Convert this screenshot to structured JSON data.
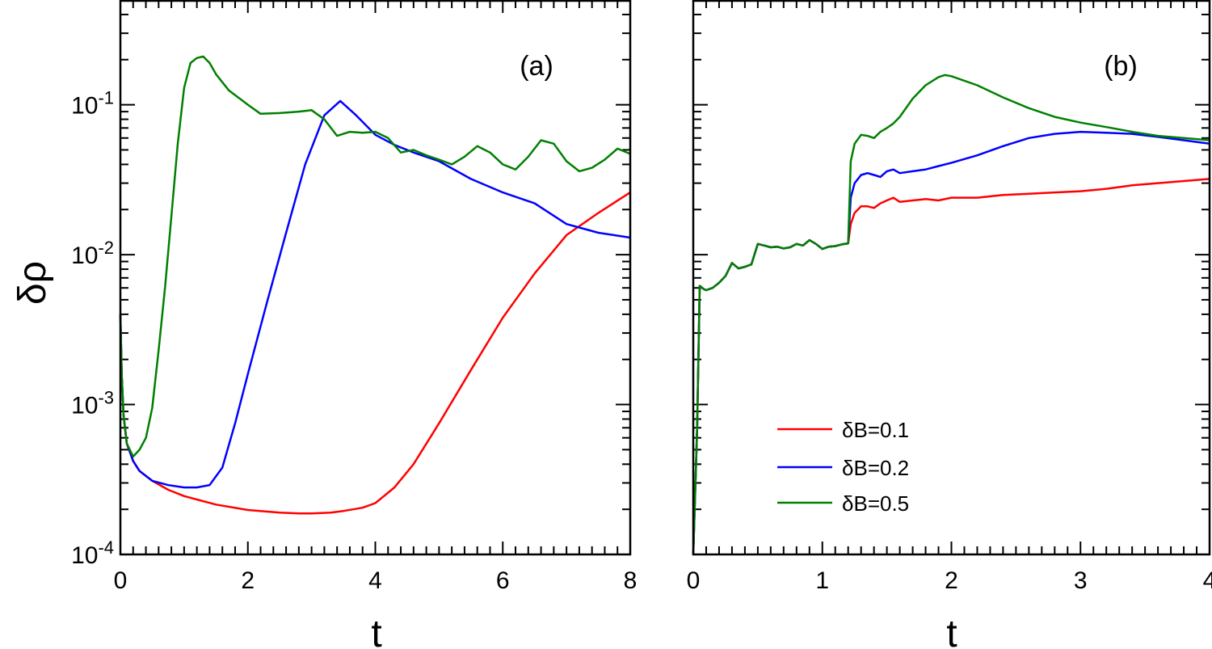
{
  "chart_data": [
    {
      "type": "line",
      "panel_label": "(a)",
      "xlabel": "t",
      "ylabel": "δρ",
      "xlim": [
        0,
        8
      ],
      "ylim": [
        0.0001,
        0.5
      ],
      "yscale": "log",
      "grid": false,
      "x_ticks": [
        0,
        2,
        4,
        6,
        8
      ],
      "y_ticks": [
        {
          "value": 0.0001,
          "base": "10",
          "exp": "-4"
        },
        {
          "value": 0.001,
          "base": "10",
          "exp": "-3"
        },
        {
          "value": 0.01,
          "base": "10",
          "exp": "-2"
        },
        {
          "value": 0.1,
          "base": "10",
          "exp": "-1"
        }
      ],
      "series": [
        {
          "name": "δB=0.1",
          "color": "#ff0000",
          "x": [
            0,
            0.02,
            0.05,
            0.1,
            0.2,
            0.3,
            0.5,
            0.75,
            1,
            1.5,
            2,
            2.5,
            2.8,
            3,
            3.3,
            3.5,
            3.8,
            4,
            4.3,
            4.6,
            5,
            5.5,
            6,
            6.5,
            7,
            7.5,
            8
          ],
          "y": [
            0.004,
            0.0016,
            0.00085,
            0.00055,
            0.00042,
            0.00036,
            0.00031,
            0.00027,
            0.000245,
            0.000215,
            0.000198,
            0.00019,
            0.000188,
            0.000188,
            0.00019,
            0.000195,
            0.000205,
            0.00022,
            0.00028,
            0.0004,
            0.00075,
            0.0017,
            0.0038,
            0.0075,
            0.0135,
            0.019,
            0.026
          ]
        },
        {
          "name": "δB=0.2",
          "color": "#0000ff",
          "x": [
            0,
            0.02,
            0.05,
            0.1,
            0.2,
            0.3,
            0.5,
            0.75,
            1,
            1.2,
            1.4,
            1.6,
            1.8,
            2,
            2.3,
            2.6,
            2.9,
            3.2,
            3.45,
            3.7,
            4,
            4.3,
            4.6,
            5,
            5.5,
            6,
            6.5,
            7,
            7.5,
            8
          ],
          "y": [
            0.004,
            0.0016,
            0.00085,
            0.00055,
            0.00042,
            0.00036,
            0.00031,
            0.00029,
            0.00028,
            0.00028,
            0.00029,
            0.00038,
            0.00075,
            0.0016,
            0.0048,
            0.014,
            0.04,
            0.085,
            0.106,
            0.085,
            0.063,
            0.054,
            0.048,
            0.042,
            0.032,
            0.026,
            0.022,
            0.016,
            0.014,
            0.013
          ]
        },
        {
          "name": "δB=0.5",
          "color": "#008000",
          "x": [
            0,
            0.02,
            0.05,
            0.1,
            0.2,
            0.3,
            0.4,
            0.5,
            0.6,
            0.7,
            0.8,
            0.9,
            1,
            1.1,
            1.2,
            1.3,
            1.4,
            1.5,
            1.7,
            2,
            2.2,
            2.5,
            2.8,
            3,
            3.2,
            3.4,
            3.6,
            3.8,
            4,
            4.2,
            4.4,
            4.6,
            4.8,
            5,
            5.2,
            5.4,
            5.6,
            5.8,
            6,
            6.2,
            6.4,
            6.6,
            6.8,
            7,
            7.2,
            7.4,
            7.6,
            7.8,
            8
          ],
          "y": [
            0.004,
            0.0016,
            0.00085,
            0.00055,
            0.00045,
            0.0005,
            0.0006,
            0.00095,
            0.0023,
            0.006,
            0.018,
            0.055,
            0.13,
            0.19,
            0.205,
            0.21,
            0.19,
            0.16,
            0.125,
            0.1,
            0.087,
            0.088,
            0.09,
            0.092,
            0.08,
            0.062,
            0.066,
            0.065,
            0.066,
            0.06,
            0.048,
            0.05,
            0.046,
            0.043,
            0.04,
            0.045,
            0.053,
            0.048,
            0.04,
            0.037,
            0.045,
            0.058,
            0.055,
            0.042,
            0.036,
            0.038,
            0.043,
            0.051,
            0.047
          ]
        }
      ]
    },
    {
      "type": "line",
      "panel_label": "(b)",
      "xlabel": "t",
      "xlim": [
        0,
        4
      ],
      "ylim": [
        0.0001,
        0.5
      ],
      "yscale": "log",
      "grid": false,
      "x_ticks": [
        0,
        1,
        2,
        3,
        4
      ],
      "legend_position": "bottom-center",
      "series": [
        {
          "name": "δB=0.1",
          "color": "#ff0000",
          "x": [
            0,
            0.03,
            0.05,
            0.08,
            0.1,
            0.15,
            0.2,
            0.25,
            0.3,
            0.35,
            0.4,
            0.45,
            0.5,
            0.55,
            0.6,
            0.65,
            0.7,
            0.75,
            0.8,
            0.85,
            0.9,
            0.95,
            1.0,
            1.05,
            1.1,
            1.15,
            1.2,
            1.22,
            1.25,
            1.3,
            1.35,
            1.4,
            1.45,
            1.5,
            1.55,
            1.6,
            1.7,
            1.8,
            1.9,
            2.0,
            2.2,
            2.4,
            2.6,
            2.8,
            3.0,
            3.2,
            3.4,
            3.6,
            3.8,
            4.0
          ],
          "y": [
            0.0001,
            0.0007,
            0.0062,
            0.0059,
            0.0058,
            0.006,
            0.0065,
            0.0072,
            0.0088,
            0.0081,
            0.0083,
            0.0086,
            0.0118,
            0.0115,
            0.0112,
            0.0113,
            0.011,
            0.0112,
            0.0118,
            0.0115,
            0.0125,
            0.0118,
            0.0109,
            0.0113,
            0.0114,
            0.0117,
            0.0119,
            0.016,
            0.019,
            0.021,
            0.021,
            0.0205,
            0.022,
            0.023,
            0.024,
            0.0225,
            0.023,
            0.0235,
            0.023,
            0.024,
            0.024,
            0.025,
            0.0255,
            0.026,
            0.0265,
            0.0275,
            0.029,
            0.03,
            0.031,
            0.032
          ]
        },
        {
          "name": "δB=0.2",
          "color": "#0000ff",
          "x": [
            0,
            0.03,
            0.05,
            0.08,
            0.1,
            0.15,
            0.2,
            0.25,
            0.3,
            0.35,
            0.4,
            0.45,
            0.5,
            0.55,
            0.6,
            0.65,
            0.7,
            0.75,
            0.8,
            0.85,
            0.9,
            0.95,
            1.0,
            1.05,
            1.1,
            1.15,
            1.2,
            1.22,
            1.25,
            1.3,
            1.35,
            1.4,
            1.45,
            1.5,
            1.55,
            1.6,
            1.7,
            1.8,
            1.9,
            2.0,
            2.2,
            2.4,
            2.6,
            2.8,
            3.0,
            3.2,
            3.4,
            3.6,
            3.8,
            4.0
          ],
          "y": [
            0.0001,
            0.0007,
            0.0062,
            0.0059,
            0.0058,
            0.006,
            0.0065,
            0.0072,
            0.0088,
            0.0081,
            0.0083,
            0.0086,
            0.0118,
            0.0115,
            0.0112,
            0.0113,
            0.011,
            0.0112,
            0.0118,
            0.0115,
            0.0125,
            0.0118,
            0.0109,
            0.0113,
            0.0114,
            0.0117,
            0.0119,
            0.024,
            0.03,
            0.034,
            0.035,
            0.034,
            0.033,
            0.036,
            0.037,
            0.035,
            0.036,
            0.037,
            0.039,
            0.041,
            0.046,
            0.053,
            0.06,
            0.064,
            0.066,
            0.065,
            0.064,
            0.061,
            0.058,
            0.055
          ]
        },
        {
          "name": "δB=0.5",
          "color": "#008000",
          "x": [
            0,
            0.03,
            0.05,
            0.08,
            0.1,
            0.15,
            0.2,
            0.25,
            0.3,
            0.35,
            0.4,
            0.45,
            0.5,
            0.55,
            0.6,
            0.65,
            0.7,
            0.75,
            0.8,
            0.85,
            0.9,
            0.95,
            1.0,
            1.05,
            1.1,
            1.15,
            1.2,
            1.22,
            1.25,
            1.3,
            1.35,
            1.4,
            1.45,
            1.5,
            1.55,
            1.6,
            1.7,
            1.8,
            1.9,
            1.95,
            2.0,
            2.2,
            2.4,
            2.6,
            2.8,
            3.0,
            3.2,
            3.4,
            3.6,
            3.8,
            4.0
          ],
          "y": [
            0.0001,
            0.0007,
            0.0062,
            0.0059,
            0.0058,
            0.006,
            0.0065,
            0.0072,
            0.0088,
            0.0081,
            0.0083,
            0.0086,
            0.0118,
            0.0115,
            0.0112,
            0.0113,
            0.011,
            0.0112,
            0.0118,
            0.0115,
            0.0125,
            0.0118,
            0.0109,
            0.0113,
            0.0114,
            0.0117,
            0.0119,
            0.042,
            0.055,
            0.063,
            0.062,
            0.06,
            0.066,
            0.07,
            0.075,
            0.083,
            0.11,
            0.135,
            0.153,
            0.158,
            0.155,
            0.135,
            0.112,
            0.095,
            0.083,
            0.076,
            0.071,
            0.066,
            0.062,
            0.06,
            0.058
          ]
        }
      ]
    }
  ]
}
